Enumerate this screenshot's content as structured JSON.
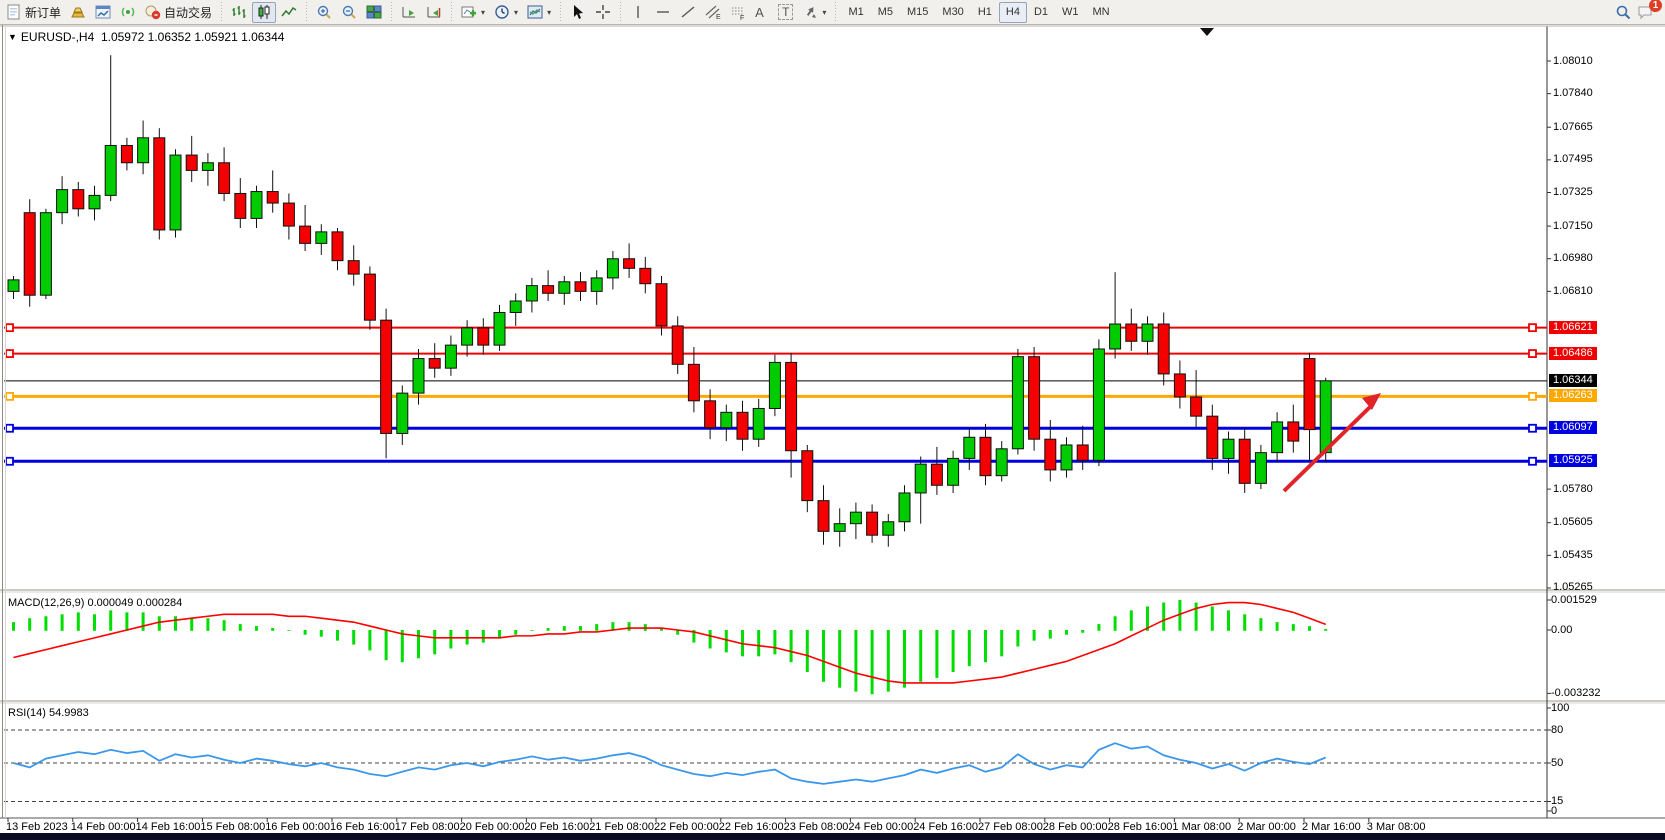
{
  "toolbar": {
    "new_order": "新订单",
    "auto_trading": "自动交易",
    "timeframes": [
      "M1",
      "M5",
      "M15",
      "M30",
      "H1",
      "H4",
      "D1",
      "W1",
      "MN"
    ],
    "active_timeframe": "H4",
    "chat_badge": "1",
    "tool_glyphs": {
      "text": "A",
      "label": "T",
      "channel_sub": "E",
      "fibo_sub": "F"
    }
  },
  "chart_header": {
    "collapse_marker": "▼",
    "symbol": "EURUSD-,H4",
    "ohlc": "1.05972 1.06352 1.05921 1.06344"
  },
  "indicators": {
    "macd_label": "MACD(12,26,9) 0.000049 0.000284",
    "rsi_label": "RSI(14) 54.9983"
  },
  "price_axis_ticks": [
    "1.08010",
    "1.07840",
    "1.07665",
    "1.07495",
    "1.07325",
    "1.07150",
    "1.06980",
    "1.06810",
    "1.05780",
    "1.05605",
    "1.05435",
    "1.05265"
  ],
  "macd_axis_ticks": [
    "0.001529",
    "0.00",
    "-0.003232"
  ],
  "rsi_axis_ticks": [
    "100",
    "80",
    "50",
    "15",
    "0"
  ],
  "chart_data": {
    "type": "candlestick",
    "symbol": "EURUSD-",
    "timeframe": "H4",
    "current_bar": {
      "open": 1.05972,
      "high": 1.06352,
      "low": 1.05921,
      "close": 1.06344
    },
    "ylim": [
      1.05265,
      1.0801
    ],
    "grid": false,
    "up_color": "#00cc00",
    "down_color": "#f40000",
    "horizontal_lines": [
      {
        "price": 1.06621,
        "label": "1.06621",
        "color": "#f00000",
        "width": 2
      },
      {
        "price": 1.06486,
        "label": "1.06486",
        "color": "#f00000",
        "width": 2
      },
      {
        "price": 1.06344,
        "label": "1.06344",
        "color": "#000000",
        "width": 1
      },
      {
        "price": 1.06263,
        "label": "1.06263",
        "color": "#ffa800",
        "width": 3
      },
      {
        "price": 1.06097,
        "label": "1.06097",
        "color": "#0000e0",
        "width": 3
      },
      {
        "price": 1.05925,
        "label": "1.05925",
        "color": "#0000e0",
        "width": 3
      }
    ],
    "candles": [
      [
        1.0681,
        1.0689,
        1.0677,
        1.0687
      ],
      [
        1.0722,
        1.0729,
        1.0673,
        1.0679
      ],
      [
        1.0679,
        1.0724,
        1.0677,
        1.0722
      ],
      [
        1.0722,
        1.0741,
        1.0716,
        1.0734
      ],
      [
        1.0734,
        1.0738,
        1.072,
        1.0724
      ],
      [
        1.0724,
        1.0736,
        1.0718,
        1.0731
      ],
      [
        1.0731,
        1.0804,
        1.0728,
        1.0757
      ],
      [
        1.0757,
        1.0761,
        1.0744,
        1.0748
      ],
      [
        1.0748,
        1.077,
        1.0742,
        1.0761
      ],
      [
        1.0761,
        1.0766,
        1.0708,
        1.0713
      ],
      [
        1.0713,
        1.0755,
        1.0709,
        1.0752
      ],
      [
        1.0752,
        1.0762,
        1.0738,
        1.0744
      ],
      [
        1.0744,
        1.0753,
        1.0736,
        1.0748
      ],
      [
        1.0748,
        1.0756,
        1.0728,
        1.0732
      ],
      [
        1.0732,
        1.074,
        1.0714,
        1.0719
      ],
      [
        1.0719,
        1.0736,
        1.0714,
        1.0733
      ],
      [
        1.0733,
        1.0744,
        1.0722,
        1.0727
      ],
      [
        1.0727,
        1.0732,
        1.0708,
        1.0715
      ],
      [
        1.0715,
        1.0726,
        1.0702,
        1.0706
      ],
      [
        1.0706,
        1.0716,
        1.07,
        1.0712
      ],
      [
        1.0712,
        1.0714,
        1.0692,
        1.0697
      ],
      [
        1.0697,
        1.0705,
        1.0684,
        1.069
      ],
      [
        1.069,
        1.0694,
        1.0661,
        1.0666
      ],
      [
        1.0666,
        1.0672,
        1.0594,
        1.0607
      ],
      [
        1.0607,
        1.0632,
        1.0601,
        1.0628
      ],
      [
        1.0628,
        1.0651,
        1.0622,
        1.0646
      ],
      [
        1.0646,
        1.0654,
        1.0636,
        1.0641
      ],
      [
        1.0641,
        1.0658,
        1.0637,
        1.0653
      ],
      [
        1.0653,
        1.0666,
        1.0647,
        1.0662
      ],
      [
        1.0662,
        1.0667,
        1.0648,
        1.0653
      ],
      [
        1.0653,
        1.0674,
        1.065,
        1.067
      ],
      [
        1.067,
        1.068,
        1.0663,
        1.0676
      ],
      [
        1.0676,
        1.0688,
        1.067,
        1.0684
      ],
      [
        1.0684,
        1.0692,
        1.0676,
        1.068
      ],
      [
        1.068,
        1.0689,
        1.0674,
        1.0686
      ],
      [
        1.0686,
        1.0691,
        1.0676,
        1.0681
      ],
      [
        1.0681,
        1.0692,
        1.0674,
        1.0688
      ],
      [
        1.0688,
        1.0702,
        1.0682,
        1.0698
      ],
      [
        1.0698,
        1.0706,
        1.0688,
        1.0693
      ],
      [
        1.0693,
        1.0699,
        1.068,
        1.0685
      ],
      [
        1.0685,
        1.0689,
        1.0658,
        1.0663
      ],
      [
        1.0663,
        1.0668,
        1.0638,
        1.0643
      ],
      [
        1.0643,
        1.0652,
        1.0618,
        1.0624
      ],
      [
        1.0624,
        1.063,
        1.0604,
        1.061
      ],
      [
        1.061,
        1.0622,
        1.0603,
        1.0618
      ],
      [
        1.0618,
        1.0624,
        1.0598,
        1.0604
      ],
      [
        1.0604,
        1.0625,
        1.06,
        1.062
      ],
      [
        1.062,
        1.0648,
        1.0616,
        1.0644
      ],
      [
        1.0644,
        1.0649,
        1.0584,
        1.0598
      ],
      [
        1.0598,
        1.0601,
        1.0566,
        1.0572
      ],
      [
        1.0572,
        1.058,
        1.0549,
        1.0556
      ],
      [
        1.0556,
        1.0568,
        1.0548,
        1.056
      ],
      [
        1.056,
        1.0571,
        1.0552,
        1.0566
      ],
      [
        1.0566,
        1.057,
        1.055,
        1.0554
      ],
      [
        1.0554,
        1.0565,
        1.0548,
        1.0561
      ],
      [
        1.0561,
        1.058,
        1.0556,
        1.0576
      ],
      [
        1.0576,
        1.0595,
        1.056,
        1.0591
      ],
      [
        1.0591,
        1.06,
        1.0575,
        1.058
      ],
      [
        1.058,
        1.0598,
        1.0576,
        1.0594
      ],
      [
        1.0594,
        1.061,
        1.0588,
        1.0605
      ],
      [
        1.0605,
        1.0612,
        1.058,
        1.0585
      ],
      [
        1.0585,
        1.0603,
        1.0582,
        1.0599
      ],
      [
        1.0599,
        1.0651,
        1.0596,
        1.0647
      ],
      [
        1.0647,
        1.0652,
        1.0598,
        1.0604
      ],
      [
        1.0604,
        1.0614,
        1.0582,
        1.0588
      ],
      [
        1.0588,
        1.0605,
        1.0584,
        1.0601
      ],
      [
        1.0601,
        1.0611,
        1.0588,
        1.0593
      ],
      [
        1.0593,
        1.0656,
        1.059,
        1.0651
      ],
      [
        1.0651,
        1.0691,
        1.0646,
        1.0664
      ],
      [
        1.0664,
        1.0672,
        1.065,
        1.0655
      ],
      [
        1.0655,
        1.0668,
        1.0648,
        1.0664
      ],
      [
        1.0664,
        1.067,
        1.0632,
        1.0638
      ],
      [
        1.0638,
        1.0645,
        1.062,
        1.0626
      ],
      [
        1.0626,
        1.064,
        1.061,
        1.0616
      ],
      [
        1.0616,
        1.0622,
        1.0588,
        1.0594
      ],
      [
        1.0594,
        1.0608,
        1.0586,
        1.0604
      ],
      [
        1.0604,
        1.061,
        1.0576,
        1.0581
      ],
      [
        1.0581,
        1.0601,
        1.0578,
        1.0597
      ],
      [
        1.0597,
        1.0618,
        1.0592,
        1.0613
      ],
      [
        1.0613,
        1.0622,
        1.0597,
        1.0603
      ],
      [
        1.0646,
        1.0649,
        1.0592,
        1.0609
      ],
      [
        1.0597,
        1.0636,
        1.0592,
        1.06344
      ]
    ],
    "indicators": {
      "macd": {
        "name": "MACD(12,26,9)",
        "current_values": [
          4.9e-05,
          0.000284
        ],
        "scale": {
          "max": 0.001529,
          "zero": 0.0,
          "min": -0.003232
        },
        "histogram": [
          0.0004,
          0.0006,
          0.0007,
          0.0008,
          0.0009,
          0.0008,
          0.001,
          0.0009,
          0.0009,
          0.0007,
          0.0007,
          0.0006,
          0.0006,
          0.0005,
          0.0003,
          0.0002,
          0.0001,
          0.0,
          -0.0002,
          -0.0003,
          -0.0005,
          -0.0007,
          -0.001,
          -0.0015,
          -0.0016,
          -0.0014,
          -0.0012,
          -0.0009,
          -0.0007,
          -0.0006,
          -0.0004,
          -0.0002,
          0.0,
          0.0001,
          0.0002,
          0.0002,
          0.0003,
          0.0004,
          0.0004,
          0.0003,
          0.0001,
          -0.0002,
          -0.0006,
          -0.0009,
          -0.0011,
          -0.0013,
          -0.0013,
          -0.0012,
          -0.0016,
          -0.0021,
          -0.0026,
          -0.0029,
          -0.0031,
          -0.003232,
          -0.0031,
          -0.0029,
          -0.0026,
          -0.0024,
          -0.0021,
          -0.0018,
          -0.0016,
          -0.0013,
          -0.0008,
          -0.0005,
          -0.0004,
          -0.0002,
          -0.0001,
          0.0003,
          0.0007,
          0.001,
          0.0012,
          0.0014,
          0.001529,
          0.0014,
          0.0012,
          0.001,
          0.0008,
          0.0006,
          0.0004,
          0.0003,
          0.0002,
          4.9e-05
        ],
        "signal": [
          -0.0014,
          -0.0012,
          -0.001,
          -0.0008,
          -0.0006,
          -0.0004,
          -0.0002,
          0.0,
          0.0002,
          0.0004,
          0.0005,
          0.0006,
          0.0007,
          0.0008,
          0.0008,
          0.0008,
          0.0008,
          0.0007,
          0.0007,
          0.0006,
          0.0005,
          0.0004,
          0.0002,
          0.0,
          -0.0002,
          -0.0003,
          -0.0004,
          -0.0004,
          -0.0004,
          -0.0004,
          -0.0004,
          -0.0003,
          -0.0003,
          -0.0002,
          -0.0002,
          -0.0001,
          -0.0001,
          0.0,
          0.0001,
          0.0001,
          0.0001,
          0.0,
          -0.0001,
          -0.0003,
          -0.0005,
          -0.0007,
          -0.0008,
          -0.0009,
          -0.0011,
          -0.0013,
          -0.0016,
          -0.0019,
          -0.0022,
          -0.0024,
          -0.0026,
          -0.0027,
          -0.0027,
          -0.0027,
          -0.0027,
          -0.0026,
          -0.0025,
          -0.0024,
          -0.0022,
          -0.002,
          -0.0018,
          -0.0016,
          -0.0013,
          -0.001,
          -0.0007,
          -0.0003,
          0.0001,
          0.0005,
          0.0008,
          0.0011,
          0.0013,
          0.0014,
          0.0014,
          0.0013,
          0.0011,
          0.0009,
          0.0006,
          0.000284
        ]
      },
      "rsi": {
        "name": "RSI(14)",
        "current_value": 54.9983,
        "levels": [
          80,
          50,
          15
        ],
        "series": [
          50,
          46,
          54,
          57,
          60,
          58,
          62,
          59,
          61,
          52,
          58,
          55,
          57,
          53,
          50,
          54,
          52,
          49,
          47,
          50,
          46,
          44,
          40,
          38,
          42,
          46,
          44,
          48,
          50,
          47,
          51,
          53,
          56,
          53,
          55,
          52,
          54,
          57,
          59,
          55,
          48,
          44,
          40,
          38,
          41,
          39,
          42,
          44,
          36,
          33,
          31,
          33,
          35,
          33,
          36,
          39,
          44,
          41,
          45,
          48,
          42,
          46,
          58,
          49,
          44,
          48,
          46,
          62,
          68,
          63,
          65,
          57,
          53,
          50,
          45,
          49,
          43,
          50,
          54,
          51,
          49,
          55
        ]
      }
    },
    "x_labels": [
      "13 Feb 2023",
      "14 Feb 00:00",
      "14 Feb 16:00",
      "15 Feb 08:00",
      "16 Feb 00:00",
      "16 Feb 16:00",
      "17 Feb 08:00",
      "20 Feb 00:00",
      "20 Feb 16:00",
      "21 Feb 08:00",
      "22 Feb 00:00",
      "22 Feb 16:00",
      "23 Feb 08:00",
      "24 Feb 00:00",
      "24 Feb 16:00",
      "27 Feb 08:00",
      "28 Feb 00:00",
      "28 Feb 16:00",
      "1 Mar 08:00",
      "2 Mar 00:00",
      "2 Mar 16:00",
      "3 Mar 08:00"
    ],
    "annotations": [
      {
        "type": "arrow",
        "color": "#e02428",
        "direction": "up-right",
        "points_at": "blue line 1.06097"
      }
    ]
  }
}
